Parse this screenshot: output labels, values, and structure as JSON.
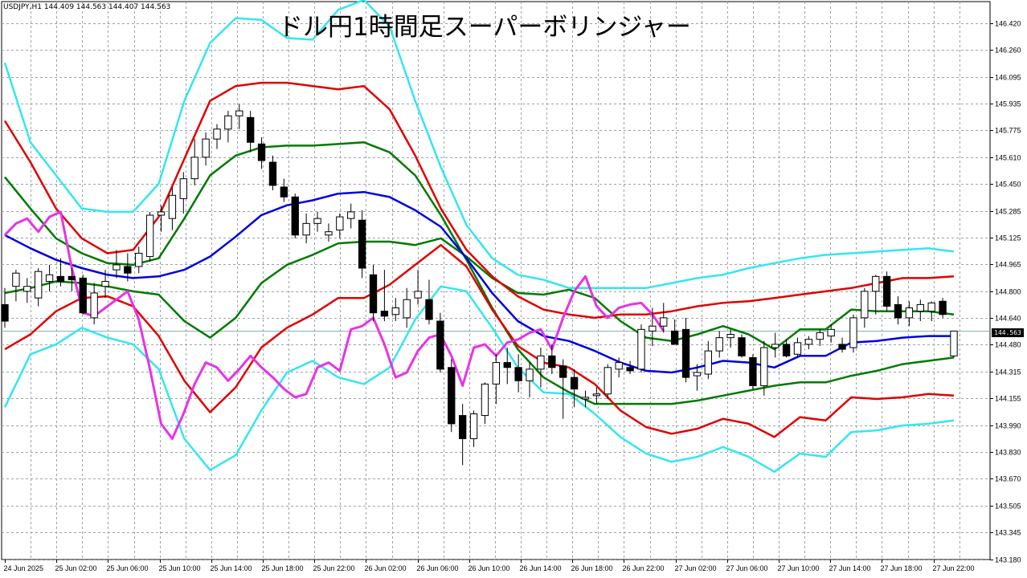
{
  "symbol_line": "USDJPY,H1  144.409 144.563 144.407 144.563",
  "title": "ドル円1時間足スーパーボリンジャー",
  "current_price": "144.563",
  "colors": {
    "grid": "#9aa3aa",
    "candle_up": "#ffffff",
    "candle_down": "#000000",
    "sma": "#0000e0",
    "band1": "#007a00",
    "band2": "#e00000",
    "band3": "#33e6f0",
    "chikou": "#e633e6",
    "price_line": "#8ab0b0"
  },
  "chart_data": {
    "type": "line",
    "title": "ドル円1時間足スーパーボリンジャー",
    "ylim": [
      143.18,
      146.55
    ],
    "y_ticks": [
      "146.420",
      "146.260",
      "146.095",
      "145.935",
      "145.775",
      "145.610",
      "145.450",
      "145.285",
      "145.125",
      "144.965",
      "144.800",
      "144.640",
      "144.480",
      "144.315",
      "144.155",
      "143.990",
      "143.830",
      "143.670",
      "143.505",
      "143.345",
      "143.180"
    ],
    "x_ticks": [
      "24 Jun 2025",
      "25 Jun 02:00",
      "25 Jun 06:00",
      "25 Jun 10:00",
      "25 Jun 14:00",
      "25 Jun 18:00",
      "25 Jun 22:00",
      "26 Jun 02:00",
      "26 Jun 06:00",
      "26 Jun 10:00",
      "26 Jun 14:00",
      "26 Jun 18:00",
      "26 Jun 22:00",
      "27 Jun 02:00",
      "27 Jun 06:00",
      "27 Jun 10:00",
      "27 Jun 14:00",
      "27 Jun 18:00",
      "27 Jun 22:00"
    ],
    "grid": true,
    "candles": [
      [
        144.72,
        144.82,
        144.58,
        144.62
      ],
      [
        144.83,
        144.93,
        144.74,
        144.91
      ],
      [
        144.8,
        144.88,
        144.73,
        144.83
      ],
      [
        144.76,
        144.94,
        144.71,
        144.92
      ],
      [
        144.86,
        144.96,
        144.8,
        144.9
      ],
      [
        144.89,
        145.0,
        144.83,
        144.86
      ],
      [
        144.89,
        144.94,
        144.8,
        144.87
      ],
      [
        144.88,
        144.9,
        144.66,
        144.67
      ],
      [
        144.64,
        144.85,
        144.6,
        144.79
      ],
      [
        144.83,
        144.93,
        144.76,
        144.86
      ],
      [
        144.93,
        145.05,
        144.88,
        144.96
      ],
      [
        144.95,
        145.03,
        144.86,
        144.91
      ],
      [
        144.95,
        145.07,
        144.91,
        145.03
      ],
      [
        145.01,
        145.28,
        144.98,
        145.26
      ],
      [
        145.26,
        145.32,
        145.16,
        145.28
      ],
      [
        145.24,
        145.43,
        145.17,
        145.38
      ],
      [
        145.36,
        145.52,
        145.27,
        145.48
      ],
      [
        145.48,
        145.72,
        145.44,
        145.61
      ],
      [
        145.61,
        145.76,
        145.56,
        145.72
      ],
      [
        145.72,
        145.81,
        145.66,
        145.78
      ],
      [
        145.78,
        145.89,
        145.7,
        145.86
      ],
      [
        145.86,
        145.93,
        145.78,
        145.89
      ],
      [
        145.85,
        145.89,
        145.64,
        145.7
      ],
      [
        145.69,
        145.73,
        145.54,
        145.59
      ],
      [
        145.58,
        145.62,
        145.41,
        145.44
      ],
      [
        145.43,
        145.48,
        145.34,
        145.37
      ],
      [
        145.37,
        145.39,
        145.12,
        145.14
      ],
      [
        145.14,
        145.27,
        145.09,
        145.21
      ],
      [
        145.21,
        145.28,
        145.16,
        145.24
      ],
      [
        145.14,
        145.21,
        145.1,
        145.16
      ],
      [
        145.17,
        145.27,
        145.12,
        145.25
      ],
      [
        145.24,
        145.33,
        145.18,
        145.28
      ],
      [
        145.23,
        145.29,
        144.88,
        144.94
      ],
      [
        144.9,
        144.96,
        144.62,
        144.67
      ],
      [
        144.68,
        144.93,
        144.62,
        144.65
      ],
      [
        144.66,
        144.76,
        144.62,
        144.7
      ],
      [
        144.64,
        144.82,
        144.58,
        144.75
      ],
      [
        144.76,
        144.93,
        144.72,
        144.8
      ],
      [
        144.75,
        144.87,
        144.6,
        144.63
      ],
      [
        144.62,
        144.67,
        144.31,
        144.33
      ],
      [
        144.34,
        144.39,
        143.95,
        144.0
      ],
      [
        144.05,
        144.12,
        143.75,
        143.91
      ],
      [
        143.91,
        144.08,
        143.86,
        144.06
      ],
      [
        144.05,
        144.25,
        144.0,
        144.24
      ],
      [
        144.24,
        144.42,
        144.12,
        144.37
      ],
      [
        144.37,
        144.46,
        144.24,
        144.34
      ],
      [
        144.34,
        144.42,
        144.19,
        144.26
      ],
      [
        144.26,
        144.37,
        144.16,
        144.33
      ],
      [
        144.33,
        144.46,
        144.22,
        144.41
      ],
      [
        144.41,
        144.48,
        144.3,
        144.34
      ],
      [
        144.35,
        144.39,
        144.03,
        144.28
      ],
      [
        144.28,
        144.33,
        144.1,
        144.21
      ],
      [
        144.15,
        144.2,
        144.1,
        144.16
      ],
      [
        144.17,
        144.22,
        144.12,
        144.18
      ],
      [
        144.18,
        144.36,
        144.15,
        144.34
      ],
      [
        144.33,
        144.4,
        144.28,
        144.37
      ],
      [
        144.34,
        144.38,
        144.3,
        144.32
      ],
      [
        144.33,
        144.6,
        144.31,
        144.57
      ],
      [
        144.56,
        144.7,
        144.47,
        144.59
      ],
      [
        144.59,
        144.73,
        144.55,
        144.64
      ],
      [
        144.56,
        144.63,
        144.48,
        144.48
      ],
      [
        144.57,
        144.64,
        144.25,
        144.28
      ],
      [
        144.29,
        144.36,
        144.2,
        144.31
      ],
      [
        144.3,
        144.5,
        144.27,
        144.44
      ],
      [
        144.44,
        144.56,
        144.4,
        144.52
      ],
      [
        144.52,
        144.57,
        144.46,
        144.54
      ],
      [
        144.52,
        144.54,
        144.4,
        144.41
      ],
      [
        144.4,
        144.42,
        144.21,
        144.23
      ],
      [
        144.23,
        144.5,
        144.17,
        144.46
      ],
      [
        144.46,
        144.55,
        144.4,
        144.48
      ],
      [
        144.48,
        144.51,
        144.4,
        144.41
      ],
      [
        144.42,
        144.52,
        144.4,
        144.49
      ],
      [
        144.48,
        144.53,
        144.45,
        144.51
      ],
      [
        144.51,
        144.57,
        144.47,
        144.55
      ],
      [
        144.53,
        144.6,
        144.49,
        144.57
      ],
      [
        144.48,
        144.52,
        144.43,
        144.45
      ],
      [
        144.46,
        144.66,
        144.43,
        144.64
      ],
      [
        144.64,
        144.82,
        144.58,
        144.8
      ],
      [
        144.8,
        144.9,
        144.66,
        144.89
      ],
      [
        144.89,
        144.92,
        144.68,
        144.71
      ],
      [
        144.72,
        144.77,
        144.6,
        144.64
      ],
      [
        144.64,
        144.74,
        144.59,
        144.7
      ],
      [
        144.68,
        144.75,
        144.62,
        144.72
      ],
      [
        144.68,
        144.74,
        144.62,
        144.73
      ],
      [
        144.74,
        144.76,
        144.64,
        144.66
      ],
      [
        144.41,
        144.56,
        144.4,
        144.56
      ]
    ],
    "series": [
      {
        "name": "",
        "color": "sma",
        "values": [
          145.14,
          145.06,
          144.99,
          144.94,
          144.9,
          144.88,
          144.89,
          144.93,
          145.01,
          145.13,
          145.26,
          145.32,
          145.35,
          145.39,
          145.4,
          145.37,
          145.29,
          145.19,
          145.0,
          144.79,
          144.62,
          144.53,
          144.5,
          144.44,
          144.37,
          144.32,
          144.31,
          144.34,
          144.38,
          144.37,
          144.34,
          144.41,
          144.41,
          144.49,
          144.5,
          144.52,
          144.53,
          144.53
        ]
      },
      {
        "name": "",
        "color": "band1",
        "values": [
          145.49,
          145.3,
          145.12,
          145.03,
          144.97,
          144.96,
          145.0,
          145.24,
          145.5,
          145.62,
          145.67,
          145.68,
          145.68,
          145.69,
          145.7,
          145.64,
          145.5,
          145.26,
          144.99,
          144.7,
          144.45,
          144.28,
          144.19,
          144.12,
          144.12,
          144.12,
          144.12,
          144.14,
          144.17,
          144.2,
          144.23,
          144.25,
          144.25,
          144.29,
          144.32,
          144.36,
          144.38,
          144.4
        ]
      },
      {
        "name": "",
        "color": "band2",
        "values": [
          145.83,
          145.58,
          145.3,
          145.12,
          145.03,
          145.05,
          145.25,
          145.6,
          145.95,
          146.04,
          146.06,
          146.06,
          146.04,
          146.02,
          146.04,
          145.9,
          145.62,
          145.3,
          145.05,
          144.89,
          144.77,
          144.69,
          144.66,
          144.64,
          144.66,
          144.66,
          144.68,
          144.71,
          144.73,
          144.74,
          144.76,
          144.78,
          144.8,
          144.82,
          144.85,
          144.88,
          144.88,
          144.89
        ]
      },
      {
        "name": "",
        "color": "band3",
        "values": [
          146.18,
          145.7,
          145.5,
          145.3,
          145.28,
          145.28,
          145.45,
          145.95,
          146.3,
          146.45,
          146.44,
          146.33,
          146.32,
          146.5,
          146.56,
          146.4,
          145.95,
          145.55,
          145.2,
          145.0,
          144.9,
          144.87,
          144.82,
          144.82,
          144.82,
          144.82,
          144.85,
          144.88,
          144.9,
          144.94,
          144.97,
          145.0,
          145.02,
          145.03,
          145.04,
          145.05,
          145.06,
          145.04
        ]
      }
    ]
  }
}
